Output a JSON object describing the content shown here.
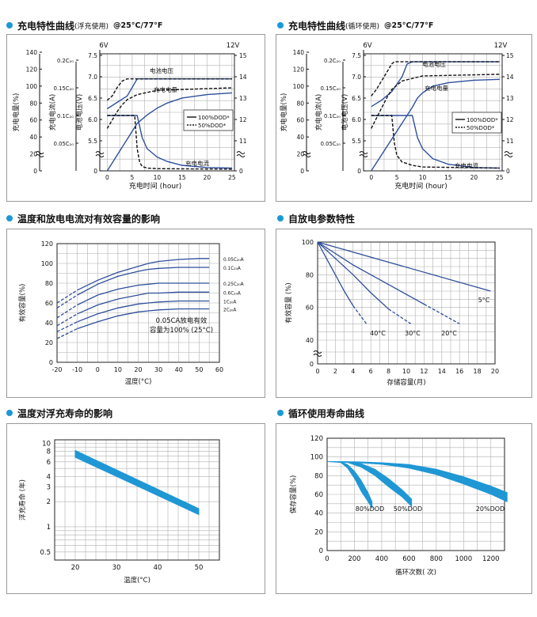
{
  "headers": [
    {
      "title": "充电特性曲线",
      "sub": "(浮充使用)",
      "tag": "@25°C/77°F"
    },
    {
      "title": "充电特性曲线",
      "sub": "(循环使用)",
      "tag": "@25°C/77°F"
    },
    {
      "title": "温度和放电电流对有效容量的影响",
      "sub": "",
      "tag": ""
    },
    {
      "title": "自放电参数特性",
      "sub": "",
      "tag": ""
    },
    {
      "title": "温度对浮充寿命的影响",
      "sub": "",
      "tag": ""
    },
    {
      "title": "循环使用寿命曲线",
      "sub": "",
      "tag": ""
    }
  ],
  "colors": {
    "accent": "#1b98d6",
    "curve": "#2e4f9c",
    "band": "#1f97d4",
    "grid": "#b0b0b0"
  },
  "chart_data": [
    {
      "type": "line",
      "id": "chart1",
      "xlabel": "充电时间 (hour)",
      "ylabel_capacity": "充电电量(%)",
      "ylabel_current": "充电电流(A)",
      "ylabel_voltage": "电池电压(V)",
      "volt_6v": "6V",
      "volt_12v": "12V",
      "xticks": [
        0,
        5,
        10,
        15,
        20,
        25
      ],
      "cap_ticks": [
        "0",
        "20",
        "40",
        "60",
        "80",
        "100",
        "120",
        "140"
      ],
      "cur_ticks": [
        "0.05C₂₀",
        "0.1C₂₀",
        "0.15C₂₀",
        "0.2C₂₀"
      ],
      "v6_ticks": [
        "0",
        "5.5",
        "6.0",
        "6.5",
        "7.0",
        "7.5"
      ],
      "v12_ticks": [
        "0",
        "11",
        "12",
        "13",
        "14",
        "15"
      ],
      "labels": {
        "voltage": "电池电压",
        "capacity": "充电电量",
        "current": "充电电流"
      },
      "legend": [
        "100%DOD*",
        "50%DOD*"
      ],
      "series": [
        {
          "name": "电池电压",
          "dod": "100%",
          "x": [
            0,
            2,
            4,
            5,
            6,
            7,
            10,
            15,
            20,
            25
          ],
          "v12": [
            12.5,
            12.8,
            13.1,
            13.5,
            13.9,
            13.9,
            13.9,
            13.9,
            13.9,
            13.9
          ]
        },
        {
          "name": "电池电压",
          "dod": "50%",
          "x": [
            0,
            1,
            2,
            3,
            4,
            10,
            25
          ],
          "v12": [
            12.9,
            13.1,
            13.5,
            13.8,
            13.9,
            13.9,
            13.9
          ]
        },
        {
          "name": "充电电量",
          "dod": "100%",
          "x": [
            0,
            6,
            8,
            10,
            12,
            15,
            20,
            25
          ],
          "cap": [
            0,
            56,
            66,
            74,
            80,
            86,
            90,
            92
          ]
        },
        {
          "name": "充电电量",
          "dod": "50%",
          "x": [
            0,
            1,
            2,
            3,
            4,
            6,
            10,
            25
          ],
          "cap": [
            50,
            60,
            70,
            78,
            84,
            90,
            95,
            98
          ]
        },
        {
          "name": "充电电流",
          "dod": "100%",
          "x": [
            0,
            6,
            7,
            8,
            10,
            12,
            15,
            20,
            25
          ],
          "cur": [
            0.1,
            0.1,
            0.06,
            0.04,
            0.025,
            0.017,
            0.01,
            0.006,
            0.005
          ]
        },
        {
          "name": "充电电流",
          "dod": "50%",
          "x": [
            0,
            5.5,
            6,
            6.5,
            7,
            8,
            10,
            25
          ],
          "cur": [
            0.1,
            0.1,
            0.04,
            0.015,
            0.008,
            0.005,
            0.004,
            0.003
          ]
        }
      ]
    },
    {
      "type": "line",
      "id": "chart2",
      "xlabel": "充电时间 (hour)",
      "ylabel_capacity": "充电电量(%)",
      "ylabel_current": "充电电流(A)",
      "ylabel_voltage": "电池电压(V)",
      "volt_6v": "6V",
      "volt_12v": "12V",
      "xticks": [
        0,
        5,
        10,
        15,
        20,
        25
      ],
      "cap_ticks": [
        "0",
        "20",
        "40",
        "60",
        "80",
        "100",
        "120",
        "140"
      ],
      "cur_ticks": [
        "0.05C₂₀",
        "0.1C₂₀",
        "0.15C₂₀",
        "0.2C₂₀"
      ],
      "v6_ticks": [
        "0",
        "5.5",
        "6.0",
        "6.5",
        "7.0",
        "7.5"
      ],
      "v12_ticks": [
        "0",
        "11",
        "12",
        "13",
        "14",
        "15"
      ],
      "labels": {
        "voltage": "电池电压",
        "capacity": "充电电量",
        "current": "充电电流"
      },
      "legend": [
        "100%DOD*",
        "50%DOD*"
      ],
      "series": [
        {
          "name": "电池电压",
          "dod": "100%",
          "x": [
            0,
            2,
            4,
            6,
            7,
            8,
            25
          ],
          "v12": [
            12.6,
            12.9,
            13.3,
            14.0,
            14.6,
            14.7,
            14.7
          ]
        },
        {
          "name": "电池电压",
          "dod": "50%",
          "x": [
            0,
            1,
            2,
            3,
            4,
            4.5,
            25
          ],
          "v12": [
            13.1,
            13.4,
            13.8,
            14.2,
            14.6,
            14.7,
            14.7
          ]
        },
        {
          "name": "充电电量",
          "dod": "100%",
          "x": [
            0,
            8,
            9,
            10,
            12,
            15,
            20,
            25
          ],
          "cap": [
            0,
            75,
            86,
            92,
            100,
            104,
            107,
            108
          ]
        },
        {
          "name": "充电电量",
          "dod": "50%",
          "x": [
            0,
            1,
            2,
            3,
            4,
            6,
            10,
            25
          ],
          "cap": [
            50,
            62,
            74,
            86,
            96,
            106,
            112,
            114
          ]
        },
        {
          "name": "充电电流",
          "dod": "100%",
          "x": [
            0,
            8,
            9,
            10,
            12,
            15,
            20,
            25
          ],
          "cur": [
            0.1,
            0.1,
            0.06,
            0.04,
            0.022,
            0.012,
            0.006,
            0.005
          ]
        },
        {
          "name": "充电电流",
          "dod": "50%",
          "x": [
            0,
            4,
            4.5,
            5,
            6,
            8,
            10,
            25
          ],
          "cur": [
            0.1,
            0.1,
            0.05,
            0.028,
            0.016,
            0.01,
            0.007,
            0.005
          ]
        }
      ]
    },
    {
      "type": "line",
      "id": "chart3",
      "xlabel": "温度(°C)",
      "ylabel": "有效容量(%)",
      "xlim": [
        -20,
        60
      ],
      "ylim": [
        0,
        120
      ],
      "xticks": [
        -20,
        -10,
        0,
        10,
        20,
        30,
        40,
        50,
        60
      ],
      "yticks": [
        0,
        20,
        40,
        60,
        80,
        100,
        120
      ],
      "note_line1": "0.05CA放电有效",
      "note_line2": "容量为100% (25°C)",
      "series": [
        {
          "name": "0.05C₂₀A",
          "x": [
            -20,
            -10,
            0,
            10,
            20,
            25,
            30,
            40,
            50,
            55
          ],
          "y": [
            60,
            73,
            83,
            91,
            97,
            100,
            102,
            104,
            105,
            105
          ]
        },
        {
          "name": "0.1C₂₀A",
          "x": [
            -20,
            -10,
            0,
            10,
            20,
            25,
            30,
            40,
            50,
            55
          ],
          "y": [
            55,
            68,
            79,
            87,
            92,
            94,
            95,
            96,
            96,
            96
          ]
        },
        {
          "name": "0.25C₂₀A",
          "x": [
            -20,
            -10,
            0,
            10,
            20,
            25,
            30,
            40,
            50,
            55
          ],
          "y": [
            45,
            58,
            68,
            74,
            78,
            79,
            80,
            80,
            80,
            80
          ]
        },
        {
          "name": "0.6C₂₀A",
          "x": [
            -20,
            -10,
            0,
            10,
            20,
            25,
            30,
            40,
            50,
            55
          ],
          "y": [
            37,
            49,
            58,
            64,
            68,
            70,
            70,
            71,
            71,
            71
          ]
        },
        {
          "name": "1C₂₀A",
          "x": [
            -20,
            -10,
            0,
            10,
            20,
            25,
            30,
            40,
            50,
            55
          ],
          "y": [
            31,
            41,
            49,
            55,
            59,
            60,
            61,
            62,
            62,
            62
          ]
        },
        {
          "name": "2C₂₀A",
          "x": [
            -20,
            -10,
            0,
            10,
            20,
            25,
            30,
            40,
            50,
            55
          ],
          "y": [
            24,
            34,
            41,
            47,
            51,
            52,
            53,
            54,
            54,
            54
          ]
        }
      ]
    },
    {
      "type": "line",
      "id": "chart4",
      "xlabel": "存储容量(月)",
      "ylabel": "有效容量 (%)",
      "xlim": [
        0,
        20
      ],
      "xticks": [
        0,
        2,
        4,
        6,
        8,
        10,
        12,
        14,
        16,
        18,
        20
      ],
      "yticks": [
        0,
        40,
        60,
        80,
        100
      ],
      "series": [
        {
          "name": "5°C",
          "x": [
            0,
            19.5
          ],
          "y": [
            100,
            70
          ]
        },
        {
          "name": "20°C",
          "x": [
            0,
            4,
            8,
            12,
            16
          ],
          "y": [
            100,
            86,
            74,
            62,
            50
          ]
        },
        {
          "name": "30°C",
          "x": [
            0,
            2,
            4,
            6,
            8,
            10.5
          ],
          "y": [
            100,
            90,
            80,
            69,
            59,
            50
          ]
        },
        {
          "name": "40°C",
          "x": [
            0,
            1,
            2,
            3,
            4,
            5.5
          ],
          "y": [
            100,
            90,
            80,
            70,
            61,
            50
          ]
        }
      ]
    },
    {
      "type": "area",
      "id": "chart5",
      "xlabel": "温度(°C)",
      "ylabel": "浮充寿命 (年)",
      "xlim": [
        15,
        55
      ],
      "xticks": [
        20,
        30,
        40,
        50
      ],
      "yticks": [
        "0.5",
        "1",
        "2",
        "3",
        "4",
        "6",
        "8",
        "10"
      ],
      "log_y": true,
      "band": {
        "x": [
          20,
          50
        ],
        "y_high": [
          8.2,
          1.65
        ],
        "y_low": [
          6.8,
          1.4
        ]
      }
    },
    {
      "type": "area",
      "id": "chart6",
      "xlabel": "循环次数(  次)",
      "ylabel": "保存容量(%)",
      "xlim": [
        0,
        1300
      ],
      "ylim": [
        0,
        120
      ],
      "xticks": [
        0,
        200,
        400,
        600,
        800,
        1000,
        1200
      ],
      "yticks": [
        0,
        20,
        40,
        60,
        80,
        100,
        120
      ],
      "series": [
        {
          "name": "80%DOD",
          "x": [
            0,
            100,
            150,
            200,
            250,
            300,
            330
          ],
          "y_high": [
            95,
            95,
            92,
            85,
            75,
            62,
            52
          ],
          "y_low": [
            95,
            94,
            88,
            77,
            63,
            52,
            45
          ]
        },
        {
          "name": "50%DOD",
          "x": [
            0,
            150,
            250,
            350,
            450,
            550,
            620
          ],
          "y_high": [
            95,
            95,
            93,
            87,
            77,
            65,
            55
          ],
          "y_low": [
            95,
            94,
            89,
            80,
            68,
            57,
            47
          ]
        },
        {
          "name": "20%DOD",
          "x": [
            0,
            200,
            400,
            600,
            800,
            1000,
            1200,
            1320
          ],
          "y_high": [
            95,
            95,
            94,
            92,
            87,
            79,
            69,
            62
          ],
          "y_low": [
            95,
            94,
            92,
            88,
            81,
            71,
            60,
            52
          ]
        }
      ]
    }
  ]
}
